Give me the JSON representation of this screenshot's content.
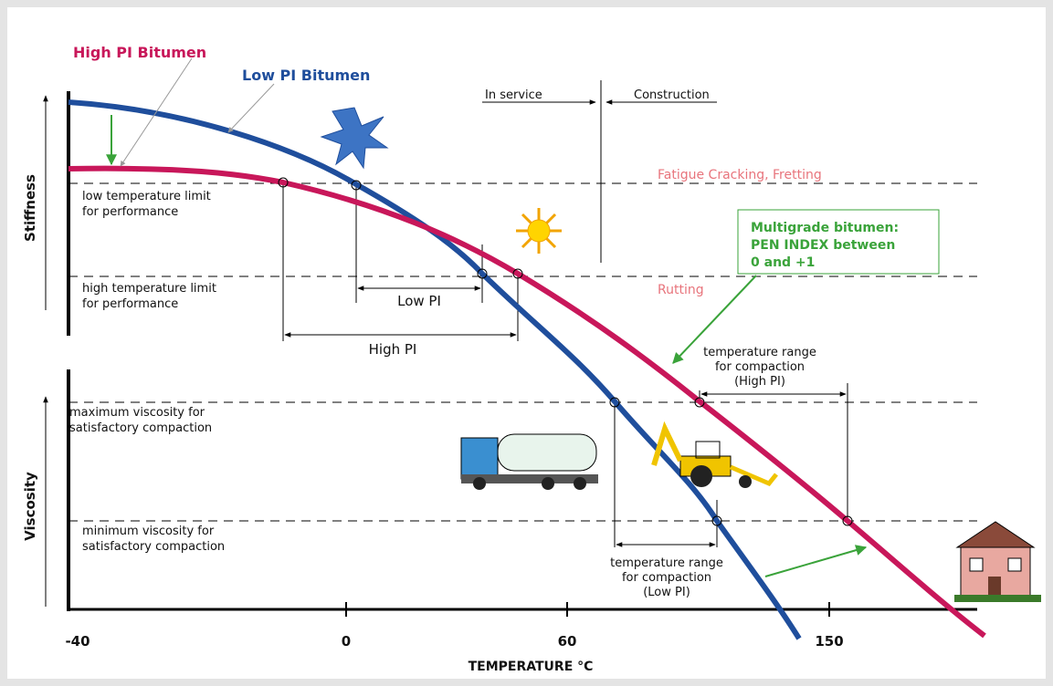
{
  "curves": {
    "high_pi": "High PI Bitumen",
    "low_pi": "Low PI Bitumen"
  },
  "phases": {
    "in_service": "In service",
    "construction": "Construction"
  },
  "stiffness_limits": {
    "low": [
      "low temperature limit",
      "for performance"
    ],
    "high": [
      "high temperature limit",
      "for performance"
    ],
    "fatigue": "Fatigue Cracking, Fretting",
    "rutting": "Rutting",
    "low_pi_range": "Low PI",
    "high_pi_range": "High PI"
  },
  "multigrade": [
    "Multigrade bitumen:",
    "PEN INDEX between",
    "0 and +1"
  ],
  "viscosity_limits": {
    "max": [
      "maximum viscosity for",
      "satisfactory compaction"
    ],
    "min": [
      "minimum viscosity for",
      "satisfactory compaction"
    ]
  },
  "compaction_high": [
    "temperature range",
    "for compaction",
    "(High PI)"
  ],
  "compaction_low": [
    "temperature range",
    "for compaction",
    "(Low PI)"
  ],
  "axes": {
    "y_top": "Stiffness",
    "y_bottom": "Viscosity",
    "x_title": "TEMPERATURE °C",
    "x_ticks": [
      "-40",
      "0",
      "60",
      "150"
    ]
  }
}
